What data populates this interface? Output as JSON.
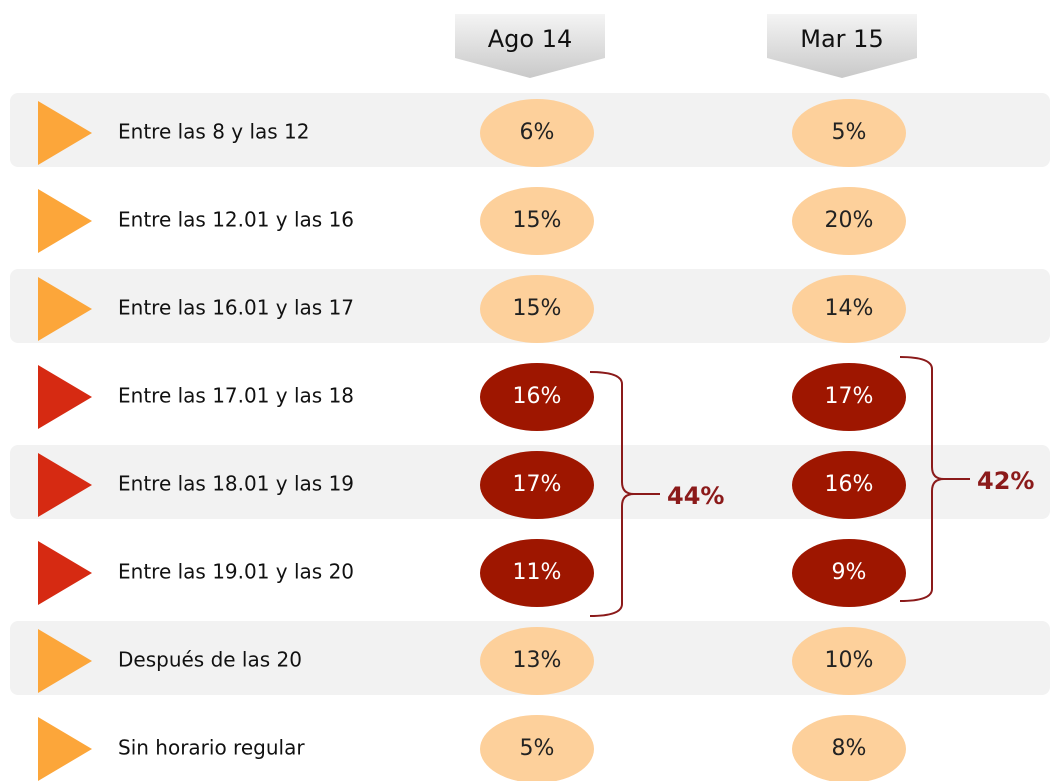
{
  "table": {
    "columns": [
      "Ago 14",
      "Mar 15"
    ],
    "rows": [
      {
        "label": "Entre las 8 y las 12",
        "values": [
          "6%",
          "5%"
        ],
        "color": "#fdd09b",
        "marker": "#fca63a"
      },
      {
        "label": "Entre las 12.01 y las 16",
        "values": [
          "15%",
          "20%"
        ],
        "color": "#fdd09b",
        "marker": "#fca63a"
      },
      {
        "label": "Entre las 16.01 y las 17",
        "values": [
          "15%",
          "14%"
        ],
        "color": "#fdd09b",
        "marker": "#fca63a"
      },
      {
        "label": "Entre las 17.01 y las 18",
        "values": [
          "16%",
          "17%"
        ],
        "color": "#9e1600",
        "marker": "#d62a12"
      },
      {
        "label": "Entre las 18.01 y las 19",
        "values": [
          "17%",
          "16%"
        ],
        "color": "#9e1600",
        "marker": "#d62a12"
      },
      {
        "label": "Entre las 19.01 y las 20",
        "values": [
          "11%",
          "9%"
        ],
        "color": "#9e1600",
        "marker": "#d62a12"
      },
      {
        "label": "Después de las 20",
        "values": [
          "13%",
          "10%"
        ],
        "color": "#fdd09b",
        "marker": "#fca63a"
      },
      {
        "label": "Sin horario regular",
        "values": [
          "5%",
          "8%"
        ],
        "color": "#fdd09b",
        "marker": "#fca63a"
      }
    ],
    "bracket_totals": [
      "44%",
      "42%"
    ]
  }
}
